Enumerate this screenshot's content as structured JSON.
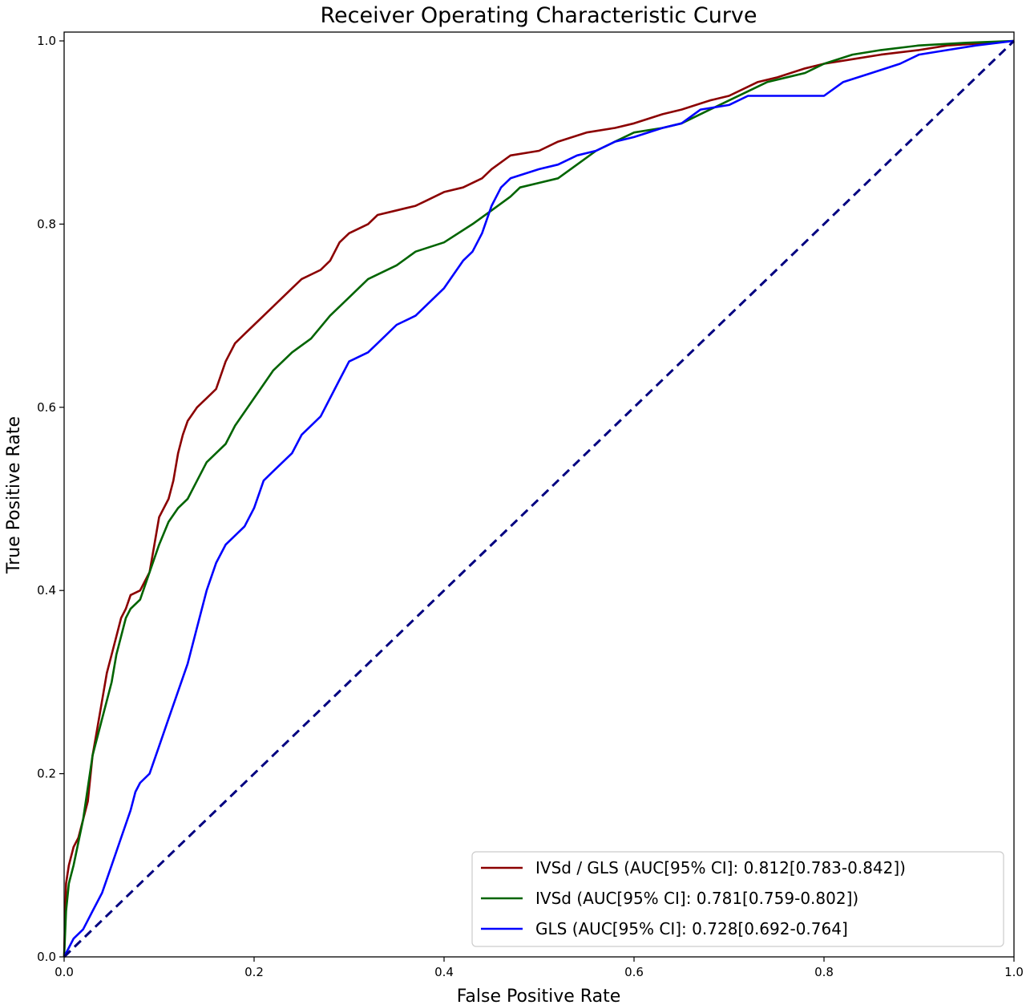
{
  "chart_data": {
    "type": "line",
    "title": "Receiver Operating Characteristic Curve",
    "xlabel": "False Positive Rate",
    "ylabel": "True Positive Rate",
    "xlim": [
      0,
      1
    ],
    "ylim": [
      0,
      1
    ],
    "xticks": [
      "0.0",
      "0.2",
      "0.4",
      "0.6",
      "0.8",
      "1.0"
    ],
    "yticks": [
      "0.0",
      "0.2",
      "0.4",
      "0.6",
      "0.8",
      "1.0"
    ],
    "grid": false,
    "legend_position": "bottom-right",
    "series": [
      {
        "name": "IVSd / GLS (AUC[95% CI]: 0.812[0.783-0.842])",
        "color": "#8b0000",
        "style": "solid",
        "points": [
          [
            0,
            0
          ],
          [
            0.002,
            0.08
          ],
          [
            0.005,
            0.1
          ],
          [
            0.01,
            0.12
          ],
          [
            0.015,
            0.13
          ],
          [
            0.02,
            0.15
          ],
          [
            0.025,
            0.17
          ],
          [
            0.03,
            0.22
          ],
          [
            0.035,
            0.25
          ],
          [
            0.04,
            0.28
          ],
          [
            0.045,
            0.31
          ],
          [
            0.05,
            0.33
          ],
          [
            0.055,
            0.35
          ],
          [
            0.06,
            0.37
          ],
          [
            0.065,
            0.38
          ],
          [
            0.07,
            0.395
          ],
          [
            0.08,
            0.4
          ],
          [
            0.09,
            0.42
          ],
          [
            0.095,
            0.45
          ],
          [
            0.1,
            0.48
          ],
          [
            0.11,
            0.5
          ],
          [
            0.115,
            0.52
          ],
          [
            0.12,
            0.55
          ],
          [
            0.125,
            0.57
          ],
          [
            0.13,
            0.585
          ],
          [
            0.14,
            0.6
          ],
          [
            0.15,
            0.61
          ],
          [
            0.16,
            0.62
          ],
          [
            0.17,
            0.65
          ],
          [
            0.18,
            0.67
          ],
          [
            0.19,
            0.68
          ],
          [
            0.2,
            0.69
          ],
          [
            0.21,
            0.7
          ],
          [
            0.22,
            0.71
          ],
          [
            0.24,
            0.73
          ],
          [
            0.25,
            0.74
          ],
          [
            0.27,
            0.75
          ],
          [
            0.28,
            0.76
          ],
          [
            0.29,
            0.78
          ],
          [
            0.3,
            0.79
          ],
          [
            0.32,
            0.8
          ],
          [
            0.33,
            0.81
          ],
          [
            0.35,
            0.815
          ],
          [
            0.37,
            0.82
          ],
          [
            0.38,
            0.825
          ],
          [
            0.4,
            0.835
          ],
          [
            0.42,
            0.84
          ],
          [
            0.44,
            0.85
          ],
          [
            0.45,
            0.86
          ],
          [
            0.47,
            0.875
          ],
          [
            0.5,
            0.88
          ],
          [
            0.52,
            0.89
          ],
          [
            0.55,
            0.9
          ],
          [
            0.58,
            0.905
          ],
          [
            0.6,
            0.91
          ],
          [
            0.63,
            0.92
          ],
          [
            0.65,
            0.925
          ],
          [
            0.68,
            0.935
          ],
          [
            0.7,
            0.94
          ],
          [
            0.73,
            0.955
          ],
          [
            0.75,
            0.96
          ],
          [
            0.78,
            0.97
          ],
          [
            0.8,
            0.975
          ],
          [
            0.83,
            0.98
          ],
          [
            0.86,
            0.985
          ],
          [
            0.9,
            0.99
          ],
          [
            0.93,
            0.995
          ],
          [
            0.96,
            0.997
          ],
          [
            1.0,
            1.0
          ]
        ]
      },
      {
        "name": "IVSd (AUC[95% CI]: 0.781[0.759-0.802])",
        "color": "#006400",
        "style": "solid",
        "points": [
          [
            0,
            0
          ],
          [
            0.002,
            0.05
          ],
          [
            0.005,
            0.08
          ],
          [
            0.01,
            0.1
          ],
          [
            0.02,
            0.15
          ],
          [
            0.03,
            0.22
          ],
          [
            0.04,
            0.26
          ],
          [
            0.05,
            0.3
          ],
          [
            0.055,
            0.33
          ],
          [
            0.06,
            0.35
          ],
          [
            0.065,
            0.37
          ],
          [
            0.07,
            0.38
          ],
          [
            0.08,
            0.39
          ],
          [
            0.09,
            0.42
          ],
          [
            0.1,
            0.45
          ],
          [
            0.11,
            0.475
          ],
          [
            0.12,
            0.49
          ],
          [
            0.13,
            0.5
          ],
          [
            0.14,
            0.52
          ],
          [
            0.15,
            0.54
          ],
          [
            0.16,
            0.55
          ],
          [
            0.17,
            0.56
          ],
          [
            0.18,
            0.58
          ],
          [
            0.2,
            0.61
          ],
          [
            0.22,
            0.64
          ],
          [
            0.24,
            0.66
          ],
          [
            0.26,
            0.675
          ],
          [
            0.28,
            0.7
          ],
          [
            0.3,
            0.72
          ],
          [
            0.32,
            0.74
          ],
          [
            0.35,
            0.755
          ],
          [
            0.37,
            0.77
          ],
          [
            0.4,
            0.78
          ],
          [
            0.43,
            0.8
          ],
          [
            0.45,
            0.815
          ],
          [
            0.47,
            0.83
          ],
          [
            0.48,
            0.84
          ],
          [
            0.5,
            0.845
          ],
          [
            0.52,
            0.85
          ],
          [
            0.54,
            0.865
          ],
          [
            0.56,
            0.88
          ],
          [
            0.58,
            0.89
          ],
          [
            0.6,
            0.9
          ],
          [
            0.63,
            0.905
          ],
          [
            0.65,
            0.91
          ],
          [
            0.68,
            0.925
          ],
          [
            0.7,
            0.935
          ],
          [
            0.72,
            0.945
          ],
          [
            0.74,
            0.955
          ],
          [
            0.76,
            0.96
          ],
          [
            0.78,
            0.965
          ],
          [
            0.8,
            0.975
          ],
          [
            0.83,
            0.985
          ],
          [
            0.86,
            0.99
          ],
          [
            0.9,
            0.995
          ],
          [
            0.95,
            0.998
          ],
          [
            1.0,
            1.0
          ]
        ]
      },
      {
        "name": "GLS (AUC[95% CI]: 0.728[0.692-0.764]",
        "color": "#0000ff",
        "style": "solid",
        "points": [
          [
            0,
            0
          ],
          [
            0.005,
            0.01
          ],
          [
            0.01,
            0.02
          ],
          [
            0.02,
            0.03
          ],
          [
            0.025,
            0.04
          ],
          [
            0.03,
            0.05
          ],
          [
            0.04,
            0.07
          ],
          [
            0.05,
            0.1
          ],
          [
            0.06,
            0.13
          ],
          [
            0.07,
            0.16
          ],
          [
            0.075,
            0.18
          ],
          [
            0.08,
            0.19
          ],
          [
            0.09,
            0.2
          ],
          [
            0.1,
            0.23
          ],
          [
            0.11,
            0.26
          ],
          [
            0.12,
            0.29
          ],
          [
            0.13,
            0.32
          ],
          [
            0.14,
            0.36
          ],
          [
            0.15,
            0.4
          ],
          [
            0.16,
            0.43
          ],
          [
            0.17,
            0.45
          ],
          [
            0.18,
            0.46
          ],
          [
            0.19,
            0.47
          ],
          [
            0.2,
            0.49
          ],
          [
            0.21,
            0.52
          ],
          [
            0.22,
            0.53
          ],
          [
            0.24,
            0.55
          ],
          [
            0.25,
            0.57
          ],
          [
            0.27,
            0.59
          ],
          [
            0.28,
            0.61
          ],
          [
            0.29,
            0.63
          ],
          [
            0.3,
            0.65
          ],
          [
            0.32,
            0.66
          ],
          [
            0.33,
            0.67
          ],
          [
            0.35,
            0.69
          ],
          [
            0.37,
            0.7
          ],
          [
            0.38,
            0.71
          ],
          [
            0.4,
            0.73
          ],
          [
            0.41,
            0.745
          ],
          [
            0.42,
            0.76
          ],
          [
            0.43,
            0.77
          ],
          [
            0.44,
            0.79
          ],
          [
            0.45,
            0.82
          ],
          [
            0.46,
            0.84
          ],
          [
            0.47,
            0.85
          ],
          [
            0.5,
            0.86
          ],
          [
            0.52,
            0.865
          ],
          [
            0.54,
            0.875
          ],
          [
            0.56,
            0.88
          ],
          [
            0.58,
            0.89
          ],
          [
            0.6,
            0.895
          ],
          [
            0.63,
            0.905
          ],
          [
            0.65,
            0.91
          ],
          [
            0.67,
            0.925
          ],
          [
            0.7,
            0.93
          ],
          [
            0.72,
            0.94
          ],
          [
            0.75,
            0.94
          ],
          [
            0.78,
            0.94
          ],
          [
            0.8,
            0.94
          ],
          [
            0.82,
            0.955
          ],
          [
            0.85,
            0.965
          ],
          [
            0.88,
            0.975
          ],
          [
            0.9,
            0.985
          ],
          [
            0.93,
            0.99
          ],
          [
            0.96,
            0.995
          ],
          [
            1.0,
            1.0
          ]
        ]
      },
      {
        "name": "",
        "color": "#000080",
        "style": "dashed",
        "points": [
          [
            0,
            0
          ],
          [
            1,
            1
          ]
        ]
      }
    ]
  }
}
